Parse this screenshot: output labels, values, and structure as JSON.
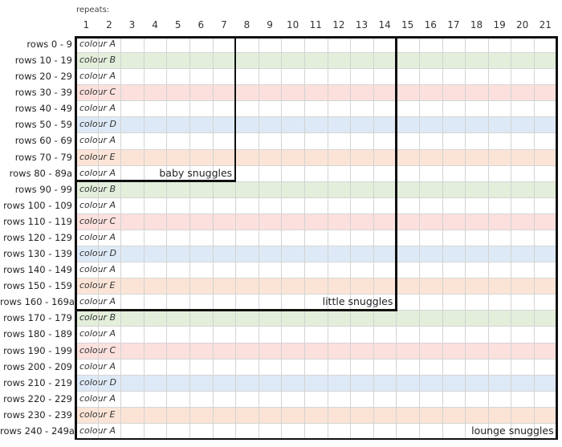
{
  "header": {
    "repeats_label": "repeats:"
  },
  "columns": [
    "1",
    "2",
    "3",
    "4",
    "5",
    "6",
    "7",
    "8",
    "9",
    "10",
    "11",
    "12",
    "13",
    "14",
    "15",
    "16",
    "17",
    "18",
    "19",
    "20",
    "21"
  ],
  "rows": [
    {
      "label": "rows 0 - 9",
      "colour": "colour A",
      "tone": "A"
    },
    {
      "label": "rows 10 - 19",
      "colour": "colour B",
      "tone": "B"
    },
    {
      "label": "rows  20 - 29",
      "colour": "colour A",
      "tone": "A"
    },
    {
      "label": "rows 30 - 39",
      "colour": "colour C",
      "tone": "C"
    },
    {
      "label": "rows 40 - 49",
      "colour": "colour A",
      "tone": "A"
    },
    {
      "label": "rows 50 - 59",
      "colour": "colour D",
      "tone": "D"
    },
    {
      "label": "rows 60 - 69",
      "colour": "colour A",
      "tone": "A"
    },
    {
      "label": "rows 70 - 79",
      "colour": "colour E",
      "tone": "E"
    },
    {
      "label": "rows 80 - 89a",
      "colour": "colour A",
      "tone": "A"
    },
    {
      "label": "rows 90 - 99",
      "colour": "colour B",
      "tone": "B"
    },
    {
      "label": "rows 100 - 109",
      "colour": "colour A",
      "tone": "A"
    },
    {
      "label": "rows 110 - 119",
      "colour": "colour C",
      "tone": "C"
    },
    {
      "label": "rows 120 - 129",
      "colour": "colour A",
      "tone": "A"
    },
    {
      "label": "rows 130 - 139",
      "colour": "colour D",
      "tone": "D"
    },
    {
      "label": "rows 140 - 149",
      "colour": "colour A",
      "tone": "A"
    },
    {
      "label": "rows 150 - 159",
      "colour": "colour E",
      "tone": "E"
    },
    {
      "label": "rows 160 - 169a",
      "colour": "colour A",
      "tone": "A"
    },
    {
      "label": "rows 170 - 179",
      "colour": "colour B",
      "tone": "B"
    },
    {
      "label": "rows 180 - 189",
      "colour": "colour A",
      "tone": "A"
    },
    {
      "label": "rows 190 - 199",
      "colour": "colour C",
      "tone": "C"
    },
    {
      "label": "rows 200 - 209",
      "colour": "colour A",
      "tone": "A"
    },
    {
      "label": "rows 210 - 219",
      "colour": "colour D",
      "tone": "D"
    },
    {
      "label": "rows 220 - 229",
      "colour": "colour A",
      "tone": "A"
    },
    {
      "label": "rows 230 - 239",
      "colour": "colour E",
      "tone": "E"
    },
    {
      "label": "rows 240 - 249a",
      "colour": "colour A",
      "tone": "A"
    }
  ],
  "tone_colors": {
    "A": "#ffffff",
    "B": "#e3eedb",
    "C": "#fbe0dd",
    "D": "#dde9f6",
    "E": "#fbe4d6"
  },
  "sections": [
    {
      "label": "baby snuggles",
      "repeats": 7,
      "row_count": 9
    },
    {
      "label": "little snuggles",
      "repeats": 14,
      "row_count": 17
    },
    {
      "label": "lounge snuggles",
      "repeats": 21,
      "row_count": 25
    }
  ]
}
